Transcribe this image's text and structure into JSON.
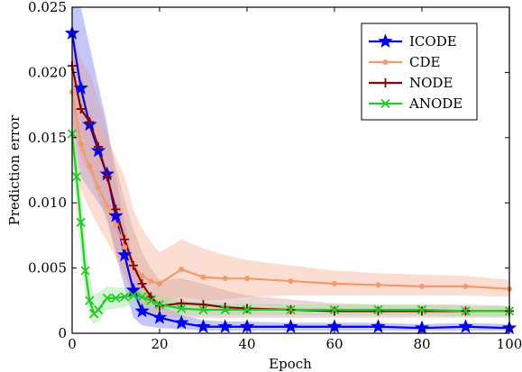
{
  "chart_data": {
    "type": "line",
    "title": "",
    "xlabel": "Epoch",
    "ylabel": "Prediction error",
    "xlim": [
      0,
      100
    ],
    "ylim": [
      0,
      0.025
    ],
    "x_ticks": [
      0,
      20,
      40,
      60,
      80,
      100
    ],
    "y_ticks": [
      0,
      0.005,
      0.01,
      0.015,
      0.02,
      0.025
    ],
    "x_tick_labels": [
      "0",
      "20",
      "40",
      "60",
      "80",
      "100"
    ],
    "y_tick_labels": [
      "0",
      "0.005",
      "0.010",
      "0.015",
      "0.020",
      "0.025"
    ],
    "legend_position": "top-right",
    "series": [
      {
        "name": "ICODE",
        "color": "#0000ee",
        "marker": "star",
        "x": [
          0,
          2,
          4,
          6,
          8,
          10,
          12,
          14,
          16,
          20,
          25,
          30,
          35,
          40,
          50,
          60,
          70,
          80,
          90,
          100
        ],
        "values": [
          0.023,
          0.0188,
          0.016,
          0.014,
          0.0122,
          0.009,
          0.006,
          0.0033,
          0.0017,
          0.0012,
          0.0008,
          0.0005,
          0.0005,
          0.0005,
          0.0005,
          0.0005,
          0.0005,
          0.0004,
          0.0005,
          0.0004
        ],
        "band_upper": [
          0.03,
          0.027,
          0.022,
          0.019,
          0.016,
          0.012,
          0.0085,
          0.0055,
          0.0032,
          0.0022,
          0.0014,
          0.001,
          0.0009,
          0.0009,
          0.0008,
          0.0008,
          0.0008,
          0.0007,
          0.0008,
          0.0007
        ],
        "band_lower": [
          0.016,
          0.012,
          0.011,
          0.01,
          0.009,
          0.006,
          0.0035,
          0.0012,
          0.0006,
          0.0004,
          0.0003,
          0.0002,
          0.0002,
          0.0002,
          0.0002,
          0.0002,
          0.0002,
          0.0002,
          0.0002,
          0.0002
        ],
        "band_color": "#8080ff"
      },
      {
        "name": "CDE",
        "color": "#f39a6a",
        "marker": "dot",
        "x": [
          0,
          2,
          4,
          6,
          8,
          10,
          12,
          14,
          16,
          18,
          20,
          25,
          30,
          35,
          40,
          50,
          60,
          70,
          80,
          90,
          100
        ],
        "values": [
          0.0185,
          0.0145,
          0.0128,
          0.0112,
          0.0098,
          0.0083,
          0.0066,
          0.0052,
          0.0044,
          0.004,
          0.0038,
          0.0049,
          0.0043,
          0.0042,
          0.0042,
          0.004,
          0.0038,
          0.0037,
          0.0036,
          0.0036,
          0.0034
        ],
        "band_upper": [
          0.022,
          0.019,
          0.017,
          0.016,
          0.015,
          0.0135,
          0.012,
          0.0095,
          0.008,
          0.007,
          0.0062,
          0.0072,
          0.0065,
          0.006,
          0.0056,
          0.0052,
          0.0048,
          0.0046,
          0.0045,
          0.0044,
          0.0041
        ],
        "band_lower": [
          0.014,
          0.011,
          0.0095,
          0.0082,
          0.007,
          0.0058,
          0.0042,
          0.003,
          0.0026,
          0.0024,
          0.0022,
          0.0028,
          0.0025,
          0.0026,
          0.0028,
          0.0029,
          0.0029,
          0.0029,
          0.0029,
          0.0029,
          0.0028
        ],
        "band_color": "#f6b49a"
      },
      {
        "name": "NODE",
        "color": "#8b0000",
        "marker": "plus",
        "x": [
          0,
          2,
          4,
          6,
          8,
          10,
          12,
          14,
          16,
          18,
          20,
          25,
          30,
          35,
          40,
          50,
          60,
          70,
          80,
          90,
          100
        ],
        "values": [
          0.0205,
          0.0172,
          0.0162,
          0.0143,
          0.012,
          0.0095,
          0.0072,
          0.0052,
          0.0038,
          0.0028,
          0.0021,
          0.0023,
          0.0022,
          0.002,
          0.0019,
          0.0018,
          0.0017,
          0.0017,
          0.0017,
          0.0017,
          0.0017
        ],
        "band_upper": [
          0.0235,
          0.021,
          0.02,
          0.018,
          0.0155,
          0.0128,
          0.0102,
          0.008,
          0.0062,
          0.005,
          0.0041,
          0.0042,
          0.0038,
          0.0033,
          0.0029,
          0.0026,
          0.0023,
          0.0022,
          0.0022,
          0.0022,
          0.0021
        ],
        "band_lower": [
          0.0165,
          0.0135,
          0.0122,
          0.0105,
          0.0085,
          0.0062,
          0.0044,
          0.0028,
          0.002,
          0.0014,
          0.0012,
          0.0012,
          0.0012,
          0.0012,
          0.0012,
          0.0012,
          0.0012,
          0.0012,
          0.0012,
          0.0012,
          0.0012
        ],
        "band_color": "#d4a39f"
      },
      {
        "name": "ANODE",
        "color": "#22cc22",
        "marker": "x",
        "x": [
          0,
          1,
          2,
          3,
          4,
          5,
          6,
          8,
          10,
          12,
          14,
          16,
          18,
          20,
          25,
          30,
          35,
          40,
          50,
          60,
          70,
          80,
          90,
          100
        ],
        "values": [
          0.0153,
          0.012,
          0.0085,
          0.0048,
          0.0025,
          0.0015,
          0.0018,
          0.0027,
          0.0027,
          0.0028,
          0.0029,
          0.0028,
          0.0025,
          0.0022,
          0.0019,
          0.0018,
          0.0018,
          0.0018,
          0.0018,
          0.0018,
          0.0018,
          0.0018,
          0.0017,
          0.0017
        ],
        "band_upper": [
          0.0165,
          0.0145,
          0.0112,
          0.0072,
          0.0043,
          0.003,
          0.0031,
          0.0036,
          0.0035,
          0.0035,
          0.0036,
          0.0035,
          0.0032,
          0.0029,
          0.0025,
          0.0024,
          0.0023,
          0.0023,
          0.0022,
          0.0022,
          0.0022,
          0.0022,
          0.0021,
          0.0021
        ],
        "band_lower": [
          0.0135,
          0.0095,
          0.006,
          0.0028,
          0.0012,
          0.0007,
          0.0009,
          0.0018,
          0.0019,
          0.002,
          0.0022,
          0.0021,
          0.0019,
          0.0016,
          0.0014,
          0.0014,
          0.0014,
          0.0014,
          0.0014,
          0.0014,
          0.0014,
          0.0014,
          0.0013,
          0.0013
        ],
        "band_color": "#9fe29f"
      }
    ]
  }
}
